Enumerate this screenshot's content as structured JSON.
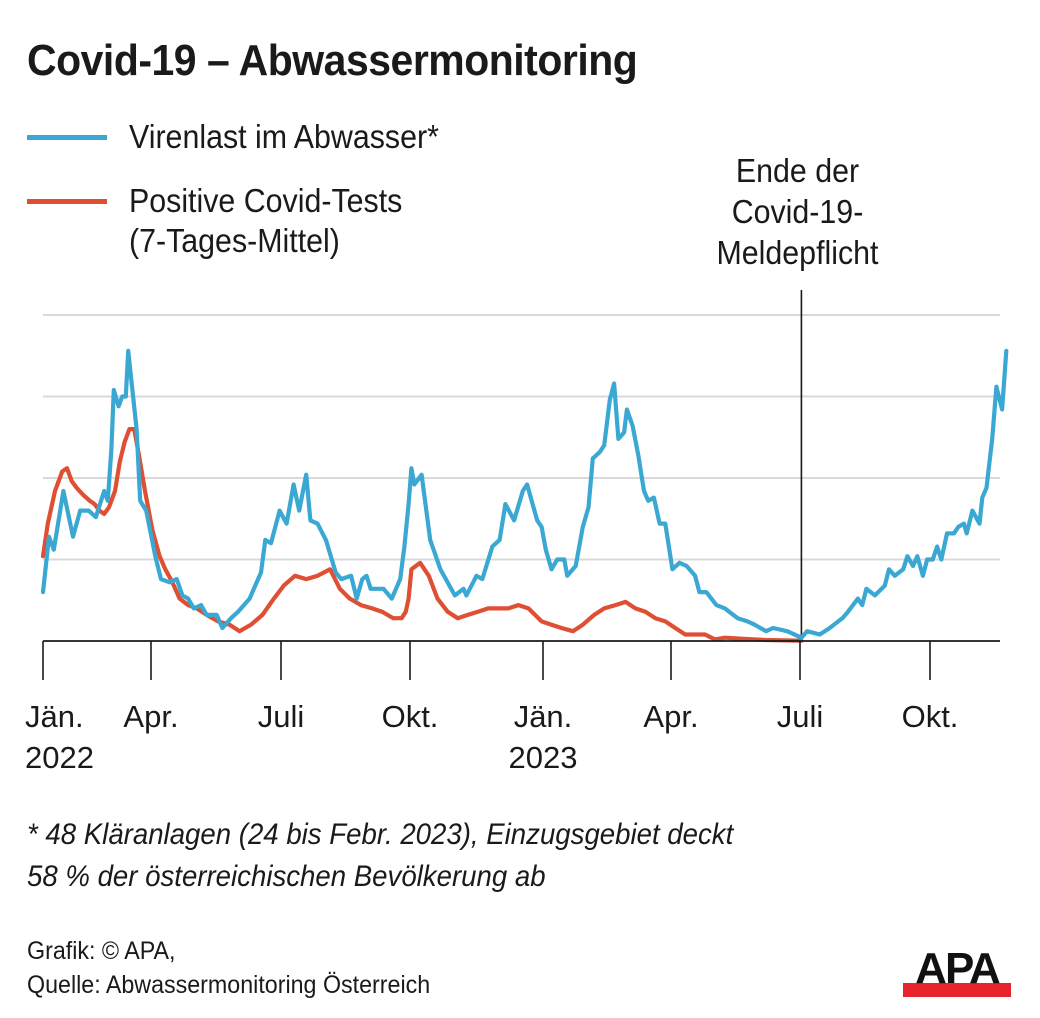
{
  "header": {
    "title": "Covid-19 – Abwassermonitoring"
  },
  "legend": [
    {
      "label": "Virenlast im Abwasser*",
      "color": "#3aa8d3",
      "line_icon": "blue-line-icon"
    },
    {
      "label_lines": [
        "Positive Covid-Tests",
        "(7-Tages-Mittel)"
      ],
      "color": "#de4f34",
      "line_icon": "red-line-icon"
    }
  ],
  "annotation": {
    "lines": [
      "Ende der",
      "Covid-19-",
      "Meldepflicht"
    ],
    "at_day": 547
  },
  "footnote": {
    "lines": [
      "* 48 Kläranlagen (24 bis Febr. 2023), Einzugsgebiet deckt",
      "58 % der österreichischen Bevölkerung ab"
    ]
  },
  "credits": {
    "lines": [
      "Grafik: © APA,",
      "Quelle: Abwassermonitoring Österreich"
    ]
  },
  "logo": {
    "text": "APA",
    "bar_color": "#e8242c"
  },
  "chart_data": {
    "type": "line",
    "title": "Covid-19 – Abwassermonitoring",
    "xlabel": "",
    "ylabel": "",
    "x_unit": "days since 2022-01-01",
    "y_unit": "relative index (no y tick labels shown)",
    "ylim": [
      0,
      100
    ],
    "xlim": [
      0,
      692
    ],
    "grid": true,
    "y_gridlines": [
      25,
      50,
      75,
      100
    ],
    "legend_position": "top-left",
    "x_ticks": [
      {
        "day": 0,
        "label": [
          "Jän.",
          "2022"
        ]
      },
      {
        "day": 90,
        "label": [
          "Apr."
        ]
      },
      {
        "day": 181,
        "label": [
          "Juli"
        ]
      },
      {
        "day": 273,
        "label": [
          "Okt."
        ]
      },
      {
        "day": 365,
        "label": [
          "Jän.",
          "2023"
        ]
      },
      {
        "day": 455,
        "label": [
          "Apr."
        ]
      },
      {
        "day": 546,
        "label": [
          "Juli"
        ]
      },
      {
        "day": 638,
        "label": [
          "Okt."
        ]
      }
    ],
    "series": [
      {
        "name": "Virenlast im Abwasser*",
        "color": "#3aa8d3",
        "points": [
          [
            0,
            15
          ],
          [
            5,
            32
          ],
          [
            9,
            28
          ],
          [
            17,
            46
          ],
          [
            25,
            32
          ],
          [
            31,
            40
          ],
          [
            38,
            40
          ],
          [
            44,
            38
          ],
          [
            51,
            46
          ],
          [
            54,
            43
          ],
          [
            57,
            59
          ],
          [
            59,
            77
          ],
          [
            63,
            72
          ],
          [
            66,
            75
          ],
          [
            69,
            75
          ],
          [
            71,
            89
          ],
          [
            78,
            65
          ],
          [
            81,
            43
          ],
          [
            86,
            40
          ],
          [
            93,
            26
          ],
          [
            97,
            19
          ],
          [
            103,
            18
          ],
          [
            108,
            19
          ],
          [
            112,
            14
          ],
          [
            116,
            13
          ],
          [
            120,
            10
          ],
          [
            125,
            11
          ],
          [
            129,
            8
          ],
          [
            136,
            8
          ],
          [
            140,
            4
          ],
          [
            146,
            7
          ],
          [
            151,
            9
          ],
          [
            159,
            13
          ],
          [
            167,
            21
          ],
          [
            170,
            31
          ],
          [
            174,
            30
          ],
          [
            180,
            40
          ],
          [
            185,
            36
          ],
          [
            190,
            48
          ],
          [
            194,
            40
          ],
          [
            199,
            51
          ],
          [
            202,
            37
          ],
          [
            207,
            36
          ],
          [
            213,
            31
          ],
          [
            220,
            21
          ],
          [
            224,
            19
          ],
          [
            231,
            20
          ],
          [
            235,
            13
          ],
          [
            239,
            19
          ],
          [
            242,
            20
          ],
          [
            245,
            16
          ],
          [
            254,
            16
          ],
          [
            260,
            13
          ],
          [
            266,
            19
          ],
          [
            269,
            29
          ],
          [
            272,
            42
          ],
          [
            274,
            53
          ],
          [
            276,
            48
          ],
          [
            281,
            51
          ],
          [
            287,
            31
          ],
          [
            294,
            22
          ],
          [
            304,
            14
          ],
          [
            310,
            16
          ],
          [
            312,
            14
          ],
          [
            319,
            20
          ],
          [
            323,
            19
          ],
          [
            330,
            29
          ],
          [
            335,
            31
          ],
          [
            339,
            42
          ],
          [
            345,
            37
          ],
          [
            351,
            46
          ],
          [
            354,
            48
          ],
          [
            361,
            37
          ],
          [
            364,
            35
          ],
          [
            367,
            28
          ],
          [
            371,
            22
          ],
          [
            375,
            25
          ],
          [
            380,
            25
          ],
          [
            382,
            20
          ],
          [
            388,
            23
          ],
          [
            393,
            35
          ],
          [
            397,
            41
          ],
          [
            400,
            56
          ],
          [
            405,
            58
          ],
          [
            408,
            60
          ],
          [
            412,
            74
          ],
          [
            415,
            79
          ],
          [
            418,
            62
          ],
          [
            422,
            64
          ],
          [
            424,
            71
          ],
          [
            428,
            66
          ],
          [
            432,
            57
          ],
          [
            436,
            46
          ],
          [
            439,
            43
          ],
          [
            443,
            44
          ],
          [
            447,
            36
          ],
          [
            451,
            36
          ],
          [
            456,
            22
          ],
          [
            461,
            24
          ],
          [
            466,
            23
          ],
          [
            472,
            20
          ],
          [
            475,
            15
          ],
          [
            480,
            15
          ],
          [
            487,
            11
          ],
          [
            493,
            10
          ],
          [
            496,
            9
          ],
          [
            502,
            7
          ],
          [
            509,
            6
          ],
          [
            514,
            5
          ],
          [
            522,
            3
          ],
          [
            527,
            4
          ],
          [
            537,
            3
          ],
          [
            547,
            1
          ],
          [
            551,
            3
          ],
          [
            560,
            2
          ],
          [
            567,
            4
          ],
          [
            573,
            6
          ],
          [
            576,
            7
          ],
          [
            580,
            9
          ],
          [
            587,
            13
          ],
          [
            590,
            11
          ],
          [
            593,
            16
          ],
          [
            599,
            14
          ],
          [
            606,
            17
          ],
          [
            609,
            22
          ],
          [
            613,
            20
          ],
          [
            619,
            22
          ],
          [
            622,
            26
          ],
          [
            626,
            23
          ],
          [
            629,
            26
          ],
          [
            633,
            20
          ],
          [
            636,
            25
          ],
          [
            640,
            25
          ],
          [
            643,
            29
          ],
          [
            646,
            25
          ],
          [
            650,
            33
          ],
          [
            655,
            33
          ],
          [
            658,
            35
          ],
          [
            662,
            36
          ],
          [
            664,
            33
          ],
          [
            668,
            40
          ],
          [
            673,
            36
          ],
          [
            675,
            44
          ],
          [
            678,
            47
          ],
          [
            682,
            62
          ],
          [
            685,
            78
          ],
          [
            689,
            71
          ],
          [
            692,
            89
          ]
        ]
      },
      {
        "name": "Positive Covid-Tests (7-Tages-Mittel)",
        "color": "#de4f34",
        "points": [
          [
            0,
            26
          ],
          [
            4,
            36
          ],
          [
            10,
            46
          ],
          [
            16,
            52
          ],
          [
            20,
            53
          ],
          [
            24,
            49
          ],
          [
            28,
            47
          ],
          [
            33,
            45
          ],
          [
            39,
            43
          ],
          [
            43,
            42
          ],
          [
            47,
            40
          ],
          [
            51,
            39
          ],
          [
            55,
            41
          ],
          [
            60,
            46
          ],
          [
            64,
            55
          ],
          [
            68,
            61
          ],
          [
            72,
            65
          ],
          [
            76,
            65
          ],
          [
            80,
            57
          ],
          [
            85,
            46
          ],
          [
            91,
            34
          ],
          [
            96,
            26
          ],
          [
            100,
            22
          ],
          [
            105,
            18
          ],
          [
            110,
            13
          ],
          [
            116,
            11
          ],
          [
            122,
            10
          ],
          [
            129,
            8
          ],
          [
            137,
            6
          ],
          [
            145,
            5
          ],
          [
            152,
            3
          ],
          [
            160,
            5
          ],
          [
            168,
            8
          ],
          [
            176,
            13
          ],
          [
            183,
            17
          ],
          [
            191,
            20
          ],
          [
            199,
            19
          ],
          [
            207,
            20
          ],
          [
            216,
            22
          ],
          [
            223,
            16
          ],
          [
            230,
            13
          ],
          [
            238,
            11
          ],
          [
            246,
            10
          ],
          [
            253,
            9
          ],
          [
            261,
            7
          ],
          [
            267,
            7
          ],
          [
            270,
            9
          ],
          [
            272,
            13
          ],
          [
            274,
            22
          ],
          [
            280,
            24
          ],
          [
            286,
            20
          ],
          [
            292,
            13
          ],
          [
            299,
            9
          ],
          [
            306,
            7
          ],
          [
            313,
            8
          ],
          [
            320,
            9
          ],
          [
            327,
            10
          ],
          [
            334,
            10
          ],
          [
            341,
            10
          ],
          [
            348,
            11
          ],
          [
            355,
            10
          ],
          [
            364,
            6
          ],
          [
            371,
            5
          ],
          [
            378,
            4
          ],
          [
            386,
            3
          ],
          [
            393,
            5
          ],
          [
            401,
            8
          ],
          [
            408,
            10
          ],
          [
            416,
            11
          ],
          [
            423,
            12
          ],
          [
            430,
            10
          ],
          [
            437,
            9
          ],
          [
            444,
            7
          ],
          [
            451,
            6
          ],
          [
            458,
            4
          ],
          [
            465,
            2
          ],
          [
            472,
            2
          ],
          [
            479,
            2
          ],
          [
            486,
            0.5
          ],
          [
            493,
            1
          ],
          [
            508,
            0.6
          ],
          [
            522,
            0.3
          ],
          [
            547,
            0.1
          ]
        ]
      }
    ],
    "vertical_marker": {
      "day": 547,
      "label": "Ende der Covid-19-Meldepflicht"
    }
  }
}
